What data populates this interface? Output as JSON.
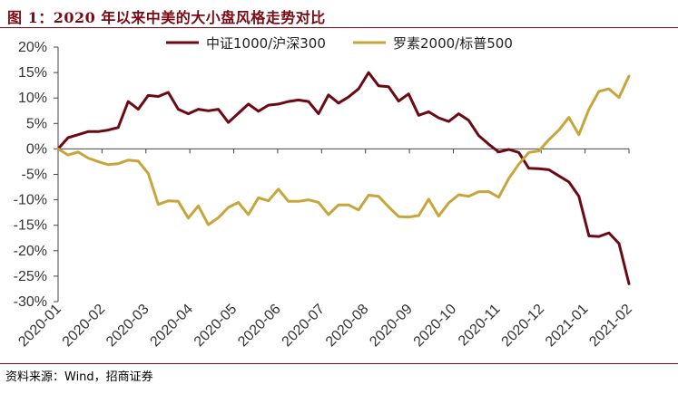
{
  "header": {
    "title": "图 1：2020 年以来中美的大小盘风格走势对比"
  },
  "footer": {
    "source": "资料来源：Wind，招商证券"
  },
  "chart_data": {
    "type": "line",
    "title": "图 1：2020 年以来中美的大小盘风格走势对比",
    "xlabel": "",
    "ylabel": "",
    "ylim": [
      -30,
      20
    ],
    "y_tick_values": [
      20,
      15,
      10,
      5,
      0,
      -5,
      -10,
      -15,
      -20,
      -25,
      -30
    ],
    "y_tick_labels": [
      "20%",
      "15%",
      "10%",
      "5%",
      "0%",
      "-5%",
      "-10%",
      "-15%",
      "-20%",
      "-25%",
      "-30%"
    ],
    "x_tick_labels": [
      "2020-01",
      "2020-02",
      "2020-03",
      "2020-04",
      "2020-05",
      "2020-06",
      "2020-07",
      "2020-08",
      "2020-09",
      "2020-10",
      "2020-11",
      "2020-12",
      "2021-01",
      "2021-02"
    ],
    "grid": false,
    "legend_position": "top",
    "series": [
      {
        "name": "中证1000/沪深300",
        "color": "#6b0a12",
        "values": [
          0.0,
          2.2,
          2.8,
          3.4,
          3.4,
          3.7,
          4.2,
          9.3,
          7.8,
          10.5,
          10.3,
          11.1,
          7.8,
          6.9,
          7.8,
          7.5,
          7.8,
          5.2,
          7.0,
          8.8,
          7.4,
          8.6,
          8.8,
          9.3,
          9.6,
          9.3,
          6.9,
          10.6,
          9.0,
          10.2,
          11.8,
          15.0,
          12.4,
          12.2,
          9.4,
          10.8,
          6.6,
          7.3,
          6.1,
          5.4,
          6.9,
          5.6,
          2.6,
          0.9,
          -0.6,
          -0.1,
          -0.7,
          -3.8,
          -3.9,
          -4.1,
          -5.3,
          -6.5,
          -9.3,
          -17.1,
          -17.2,
          -16.5,
          -18.6,
          -26.5
        ]
      },
      {
        "name": "罗素2000/标普500",
        "color": "#c8a53a",
        "values": [
          0.0,
          -1.2,
          -0.6,
          -1.8,
          -2.5,
          -3.1,
          -2.9,
          -2.2,
          -2.4,
          -4.8,
          -10.9,
          -10.2,
          -10.3,
          -13.6,
          -11.2,
          -14.9,
          -13.5,
          -11.5,
          -10.5,
          -12.9,
          -9.6,
          -10.2,
          -7.9,
          -10.3,
          -10.3,
          -10.0,
          -10.5,
          -12.9,
          -11.0,
          -11.0,
          -12.0,
          -9.1,
          -9.3,
          -11.4,
          -13.3,
          -13.4,
          -13.1,
          -9.9,
          -13.2,
          -10.6,
          -9.0,
          -9.3,
          -8.4,
          -8.4,
          -9.5,
          -5.8,
          -3.0,
          -0.7,
          -0.4,
          1.8,
          3.7,
          6.2,
          2.8,
          7.8,
          11.3,
          11.8,
          10.1,
          14.3
        ]
      }
    ]
  }
}
